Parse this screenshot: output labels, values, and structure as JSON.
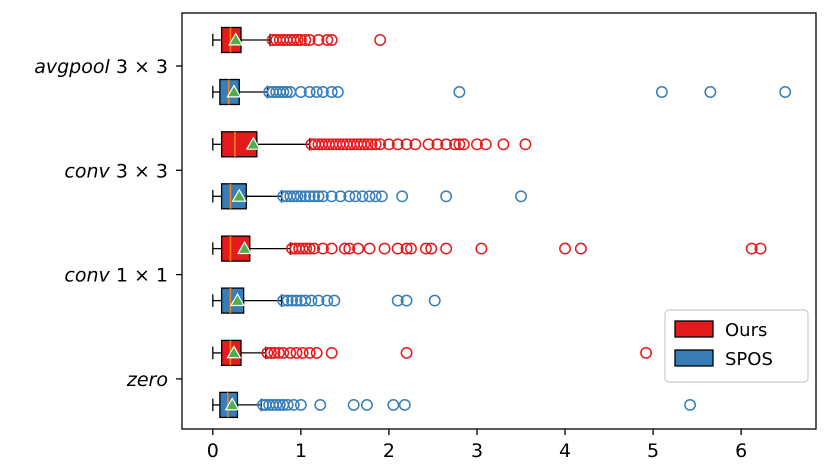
{
  "chart_data": {
    "type": "boxplot",
    "orientation": "horizontal",
    "xlim": [
      -0.35,
      6.85
    ],
    "x_ticks": [
      0,
      1,
      2,
      3,
      4,
      5,
      6
    ],
    "categories": [
      {
        "name": "avgpool",
        "dim": "3 × 3"
      },
      {
        "name": "conv",
        "dim": "3 × 3"
      },
      {
        "name": "conv",
        "dim": "1 × 1"
      },
      {
        "name": "zero",
        "dim": ""
      }
    ],
    "series": [
      {
        "name": "Ours",
        "color": "#e41a1c"
      },
      {
        "name": "SPOS",
        "color": "#377eb8"
      }
    ],
    "boxes": [
      {
        "category": 0,
        "series": 0,
        "whisker_low": 0.0,
        "q1": 0.1,
        "median": 0.2,
        "q3": 0.32,
        "whisker_high": 0.65,
        "mean": 0.26,
        "outliers": [
          0.68,
          0.72,
          0.76,
          0.8,
          0.84,
          0.88,
          0.92,
          0.96,
          1.0,
          1.05,
          1.1,
          1.2,
          1.3,
          1.35,
          1.9
        ]
      },
      {
        "category": 0,
        "series": 1,
        "whisker_low": 0.0,
        "q1": 0.08,
        "median": 0.18,
        "q3": 0.3,
        "whisker_high": 0.62,
        "mean": 0.24,
        "outliers": [
          0.64,
          0.68,
          0.72,
          0.76,
          0.8,
          0.84,
          0.88,
          1.0,
          1.1,
          1.18,
          1.25,
          1.35,
          1.42,
          2.8,
          5.1,
          5.65,
          6.5
        ]
      },
      {
        "category": 1,
        "series": 0,
        "whisker_low": 0.0,
        "q1": 0.1,
        "median": 0.25,
        "q3": 0.5,
        "whisker_high": 1.1,
        "mean": 0.46,
        "outliers": [
          1.12,
          1.16,
          1.2,
          1.24,
          1.28,
          1.32,
          1.36,
          1.4,
          1.44,
          1.48,
          1.52,
          1.56,
          1.6,
          1.64,
          1.68,
          1.72,
          1.76,
          1.8,
          1.85,
          1.9,
          2.0,
          2.1,
          2.2,
          2.3,
          2.45,
          2.55,
          2.65,
          2.75,
          2.8,
          2.85,
          3.0,
          3.1,
          3.3,
          3.55
        ]
      },
      {
        "category": 1,
        "series": 1,
        "whisker_low": 0.0,
        "q1": 0.1,
        "median": 0.2,
        "q3": 0.38,
        "whisker_high": 0.78,
        "mean": 0.3,
        "outliers": [
          0.8,
          0.84,
          0.88,
          0.92,
          0.96,
          1.0,
          1.05,
          1.1,
          1.15,
          1.2,
          1.25,
          1.35,
          1.45,
          1.55,
          1.62,
          1.7,
          1.78,
          1.85,
          1.92,
          2.15,
          2.65,
          3.5
        ]
      },
      {
        "category": 2,
        "series": 0,
        "whisker_low": 0.0,
        "q1": 0.1,
        "median": 0.2,
        "q3": 0.42,
        "whisker_high": 0.88,
        "mean": 0.36,
        "outliers": [
          0.9,
          0.94,
          0.98,
          1.02,
          1.06,
          1.1,
          1.15,
          1.25,
          1.35,
          1.5,
          1.55,
          1.65,
          1.78,
          1.95,
          2.1,
          2.2,
          2.25,
          2.42,
          2.48,
          2.65,
          3.05,
          4.0,
          4.18,
          6.12,
          6.22
        ]
      },
      {
        "category": 2,
        "series": 1,
        "whisker_low": 0.0,
        "q1": 0.1,
        "median": 0.2,
        "q3": 0.35,
        "whisker_high": 0.78,
        "mean": 0.28,
        "outliers": [
          0.8,
          0.85,
          0.9,
          0.95,
          1.0,
          1.05,
          1.12,
          1.2,
          1.3,
          1.38,
          2.1,
          2.2,
          2.52
        ]
      },
      {
        "category": 3,
        "series": 0,
        "whisker_low": 0.0,
        "q1": 0.1,
        "median": 0.2,
        "q3": 0.32,
        "whisker_high": 0.6,
        "mean": 0.24,
        "outliers": [
          0.62,
          0.66,
          0.7,
          0.75,
          0.8,
          0.88,
          0.95,
          1.02,
          1.1,
          1.18,
          1.35,
          2.2,
          4.92
        ]
      },
      {
        "category": 3,
        "series": 1,
        "whisker_low": 0.0,
        "q1": 0.08,
        "median": 0.17,
        "q3": 0.28,
        "whisker_high": 0.55,
        "mean": 0.22,
        "outliers": [
          0.57,
          0.6,
          0.64,
          0.68,
          0.72,
          0.76,
          0.8,
          0.85,
          0.92,
          1.0,
          1.22,
          1.6,
          1.75,
          2.05,
          2.18,
          5.42
        ]
      }
    ],
    "legend": {
      "position": "bottom-right",
      "entries": [
        "Ours",
        "SPOS"
      ]
    }
  }
}
